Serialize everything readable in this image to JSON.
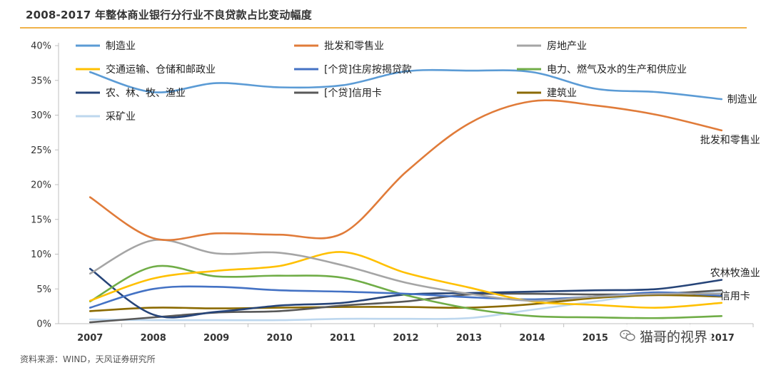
{
  "header": {
    "title": "2008-2017 年整体商业银行分行业不良贷款占比变动幅度"
  },
  "footer": {
    "source": "资料来源：WIND，天风证券研究所"
  },
  "watermark": {
    "text": "猫哥的视界",
    "icon": "wechat-icon"
  },
  "chart_data": {
    "type": "line",
    "title": "2008-2017 年整体商业银行分行业不良贷款占比变动幅度",
    "xlabel": "",
    "ylabel": "",
    "categories": [
      "2007",
      "2008",
      "2009",
      "2010",
      "2011",
      "2012",
      "2013",
      "2014",
      "2015",
      "2016",
      "2017"
    ],
    "tick_labels_y": [
      "0%",
      "5%",
      "10%",
      "15%",
      "20%",
      "25%",
      "30%",
      "35%",
      "40%"
    ],
    "ylim": [
      0,
      40
    ],
    "grid": false,
    "legend_placement": "top",
    "series": [
      {
        "name": "制造业",
        "color": "#5b9bd5",
        "values": [
          36.2,
          33.3,
          34.6,
          34.0,
          34.3,
          36.3,
          36.4,
          36.2,
          33.8,
          33.3,
          32.3
        ],
        "end_label": "制造业"
      },
      {
        "name": "批发和零售业",
        "color": "#e07b39",
        "values": [
          18.2,
          12.3,
          13.0,
          12.8,
          13.0,
          21.8,
          28.8,
          32.0,
          31.4,
          30.0,
          27.8
        ],
        "end_label": "批发和零售业"
      },
      {
        "name": "房地产业",
        "color": "#a5a5a5",
        "values": [
          7.2,
          12.0,
          10.1,
          10.2,
          8.4,
          5.9,
          4.3,
          3.3,
          3.9,
          4.3,
          4.3
        ],
        "end_label": ""
      },
      {
        "name": "交通运输、仓储和邮政业",
        "color": "#ffc000",
        "values": [
          3.3,
          6.5,
          7.6,
          8.3,
          10.3,
          7.3,
          5.2,
          3.2,
          2.7,
          2.3,
          3.0
        ],
        "end_label": ""
      },
      {
        "name": "[个贷]住房按揭贷款",
        "color": "#4472c4",
        "values": [
          2.3,
          5.0,
          5.3,
          4.8,
          4.6,
          4.3,
          3.8,
          3.5,
          3.9,
          4.5,
          4.0
        ],
        "end_label": ""
      },
      {
        "name": "电力、燃气及水的生产和供应业",
        "color": "#70ad47",
        "values": [
          3.2,
          8.2,
          6.8,
          6.9,
          6.6,
          4.1,
          2.2,
          1.1,
          0.9,
          0.8,
          1.1
        ],
        "end_label": ""
      },
      {
        "name": "农、林、牧、渔业",
        "color": "#264478",
        "values": [
          7.9,
          1.3,
          1.7,
          2.6,
          3.0,
          4.2,
          4.4,
          4.6,
          4.8,
          5.0,
          6.3
        ],
        "end_label": "农林牧渔业"
      },
      {
        "name": "[个贷]信用卡",
        "color": "#595959",
        "values": [
          0.2,
          0.9,
          1.6,
          1.8,
          2.6,
          3.2,
          4.2,
          4.3,
          4.2,
          4.3,
          4.8
        ],
        "end_label": "信用卡"
      },
      {
        "name": "建筑业",
        "color": "#8b6a00",
        "values": [
          1.8,
          2.3,
          2.2,
          2.3,
          2.4,
          2.4,
          2.3,
          2.8,
          3.7,
          4.1,
          3.9
        ],
        "end_label": ""
      },
      {
        "name": "采矿业",
        "color": "#bdd7ee",
        "values": [
          0.6,
          0.5,
          0.5,
          0.5,
          0.7,
          0.7,
          0.8,
          2.0,
          3.2,
          4.4,
          4.4
        ],
        "end_label": ""
      }
    ]
  }
}
